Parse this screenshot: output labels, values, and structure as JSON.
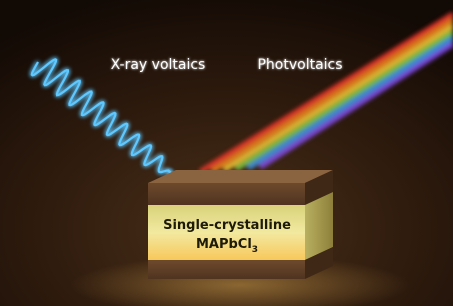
{
  "labels": {
    "xray": "X-ray voltaics",
    "photo": "Photvoltaics"
  },
  "material": {
    "line1": "Single-crystalline",
    "formula": "MAPbCl",
    "subscript": "3"
  }
}
